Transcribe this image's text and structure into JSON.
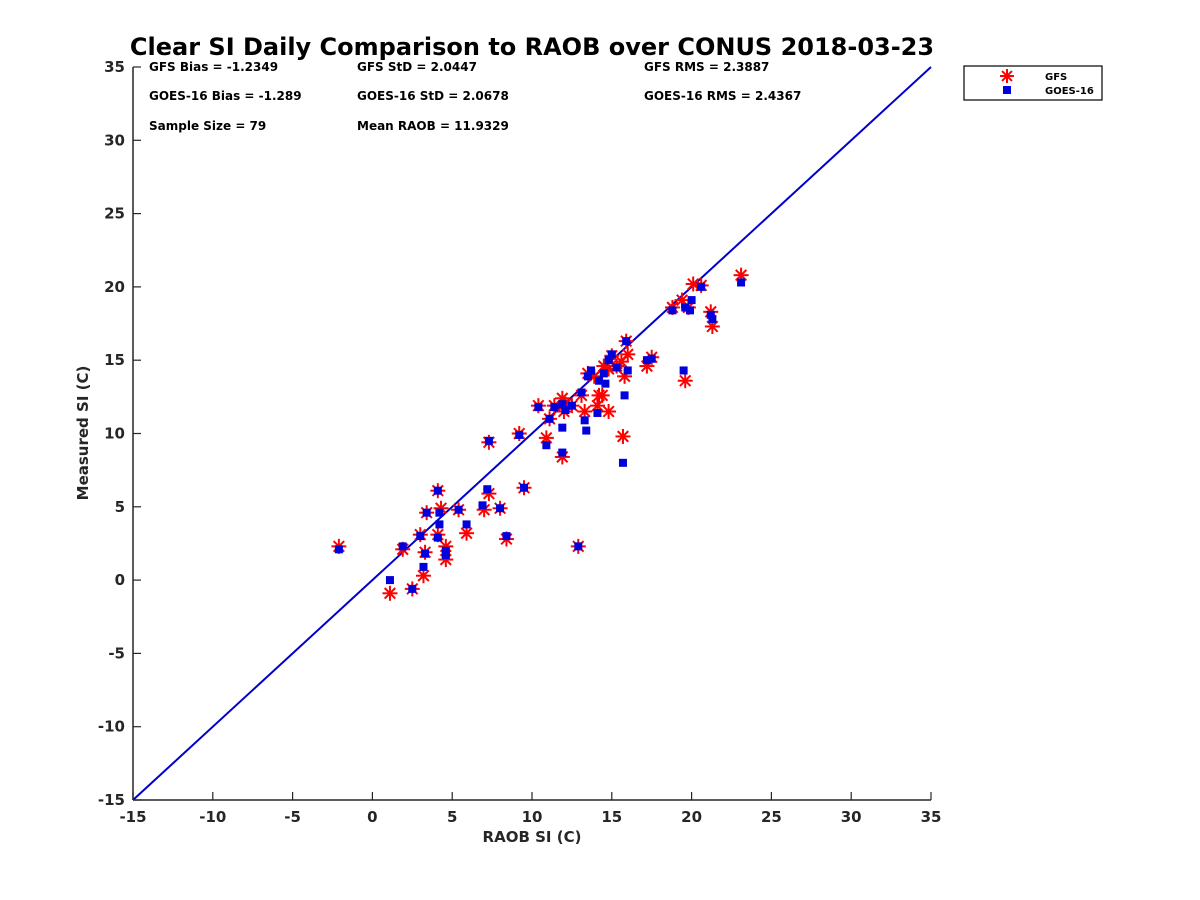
{
  "chart_data": {
    "type": "scatter",
    "title": "Clear SI Daily Comparison to RAOB over CONUS 2018-03-23",
    "xlabel": "RAOB SI (C)",
    "ylabel": "Measured SI (C)",
    "xlim": [
      -15,
      35
    ],
    "ylim": [
      -15,
      35
    ],
    "xticks": [
      -15,
      -10,
      -5,
      0,
      5,
      10,
      15,
      20,
      25,
      30,
      35
    ],
    "yticks": [
      -15,
      -10,
      -5,
      0,
      5,
      10,
      15,
      20,
      25,
      30,
      35
    ],
    "grid": false,
    "legend_position": "outside-top-right",
    "one_to_one_line": {
      "x": [
        -15,
        35
      ],
      "y": [
        -15,
        35
      ],
      "color": "#0000cc"
    },
    "stats": [
      {
        "text": "GFS Bias = -1.2349"
      },
      {
        "text": "GFS StD = 2.0447"
      },
      {
        "text": "GFS RMS = 2.3887"
      },
      {
        "text": "GOES-16 Bias = -1.289"
      },
      {
        "text": "GOES-16 StD = 2.0678"
      },
      {
        "text": "GOES-16 RMS = 2.4367"
      },
      {
        "text": "Sample Size = 79"
      },
      {
        "text": "Mean RAOB = 11.9329"
      }
    ],
    "series": [
      {
        "name": "GFS",
        "marker": "asterisk",
        "color": "#ff0000",
        "points": [
          [
            -2.1,
            2.3
          ],
          [
            1.1,
            -0.9
          ],
          [
            2.5,
            -0.6
          ],
          [
            3.2,
            0.3
          ],
          [
            1.9,
            2.1
          ],
          [
            3.3,
            1.9
          ],
          [
            3.0,
            3.1
          ],
          [
            4.6,
            1.4
          ],
          [
            4.6,
            2.3
          ],
          [
            4.1,
            3.1
          ],
          [
            4.3,
            4.9
          ],
          [
            3.4,
            4.6
          ],
          [
            4.1,
            6.1
          ],
          [
            5.4,
            4.8
          ],
          [
            5.9,
            3.2
          ],
          [
            7.0,
            4.8
          ],
          [
            7.3,
            5.9
          ],
          [
            7.3,
            9.4
          ],
          [
            8.0,
            4.9
          ],
          [
            8.4,
            2.8
          ],
          [
            9.2,
            10.0
          ],
          [
            9.5,
            6.3
          ],
          [
            10.4,
            11.9
          ],
          [
            10.9,
            9.7
          ],
          [
            11.1,
            11.0
          ],
          [
            11.4,
            11.9
          ],
          [
            11.9,
            12.4
          ],
          [
            11.9,
            8.4
          ],
          [
            12.0,
            11.5
          ],
          [
            12.1,
            12.0
          ],
          [
            12.5,
            11.9
          ],
          [
            12.9,
            2.3
          ],
          [
            13.1,
            12.6
          ],
          [
            13.3,
            11.5
          ],
          [
            13.5,
            14.1
          ],
          [
            13.9,
            13.9
          ],
          [
            14.1,
            11.9
          ],
          [
            14.2,
            12.6
          ],
          [
            14.4,
            12.6
          ],
          [
            14.5,
            14.6
          ],
          [
            14.8,
            14.4
          ],
          [
            14.8,
            11.5
          ],
          [
            15.0,
            15.3
          ],
          [
            15.3,
            14.6
          ],
          [
            15.6,
            14.9
          ],
          [
            15.7,
            9.8
          ],
          [
            15.8,
            13.9
          ],
          [
            15.9,
            16.3
          ],
          [
            16.0,
            15.4
          ],
          [
            17.2,
            14.6
          ],
          [
            17.5,
            15.2
          ],
          [
            18.8,
            18.6
          ],
          [
            19.4,
            19.1
          ],
          [
            19.6,
            13.6
          ],
          [
            19.8,
            18.6
          ],
          [
            20.1,
            20.2
          ],
          [
            20.6,
            20.1
          ],
          [
            21.2,
            18.3
          ],
          [
            21.3,
            17.3
          ],
          [
            23.1,
            20.8
          ]
        ]
      },
      {
        "name": "GOES-16",
        "marker": "square",
        "color": "#0000dd",
        "points": [
          [
            -2.1,
            2.1
          ],
          [
            1.1,
            0.0
          ],
          [
            2.5,
            -0.6
          ],
          [
            3.2,
            0.9
          ],
          [
            1.9,
            2.3
          ],
          [
            3.3,
            1.8
          ],
          [
            3.0,
            3.0
          ],
          [
            4.6,
            1.7
          ],
          [
            4.6,
            2.0
          ],
          [
            4.1,
            2.9
          ],
          [
            4.2,
            4.6
          ],
          [
            3.4,
            4.6
          ],
          [
            4.1,
            6.1
          ],
          [
            4.2,
            3.8
          ],
          [
            5.4,
            4.8
          ],
          [
            5.9,
            3.8
          ],
          [
            6.9,
            5.1
          ],
          [
            7.2,
            6.2
          ],
          [
            7.3,
            9.5
          ],
          [
            8.0,
            4.9
          ],
          [
            8.4,
            3.0
          ],
          [
            9.2,
            9.9
          ],
          [
            9.5,
            6.3
          ],
          [
            10.4,
            11.8
          ],
          [
            10.9,
            9.2
          ],
          [
            11.1,
            11.0
          ],
          [
            11.4,
            11.8
          ],
          [
            11.9,
            12.0
          ],
          [
            11.9,
            8.7
          ],
          [
            11.9,
            10.4
          ],
          [
            12.1,
            11.6
          ],
          [
            12.5,
            11.9
          ],
          [
            12.9,
            2.3
          ],
          [
            13.1,
            12.8
          ],
          [
            13.3,
            10.9
          ],
          [
            13.4,
            10.2
          ],
          [
            13.5,
            13.9
          ],
          [
            13.7,
            14.3
          ],
          [
            14.1,
            11.4
          ],
          [
            14.2,
            13.6
          ],
          [
            14.5,
            14.1
          ],
          [
            14.6,
            13.4
          ],
          [
            14.8,
            15.0
          ],
          [
            15.0,
            15.4
          ],
          [
            15.3,
            14.5
          ],
          [
            15.7,
            8.0
          ],
          [
            15.8,
            12.6
          ],
          [
            15.9,
            16.3
          ],
          [
            16.0,
            14.3
          ],
          [
            17.2,
            15.0
          ],
          [
            17.5,
            15.1
          ],
          [
            18.8,
            18.4
          ],
          [
            19.5,
            14.3
          ],
          [
            19.6,
            18.6
          ],
          [
            19.9,
            18.4
          ],
          [
            20.0,
            19.1
          ],
          [
            20.6,
            20.0
          ],
          [
            21.2,
            18.1
          ],
          [
            21.3,
            17.8
          ],
          [
            23.1,
            20.3
          ]
        ]
      }
    ]
  }
}
